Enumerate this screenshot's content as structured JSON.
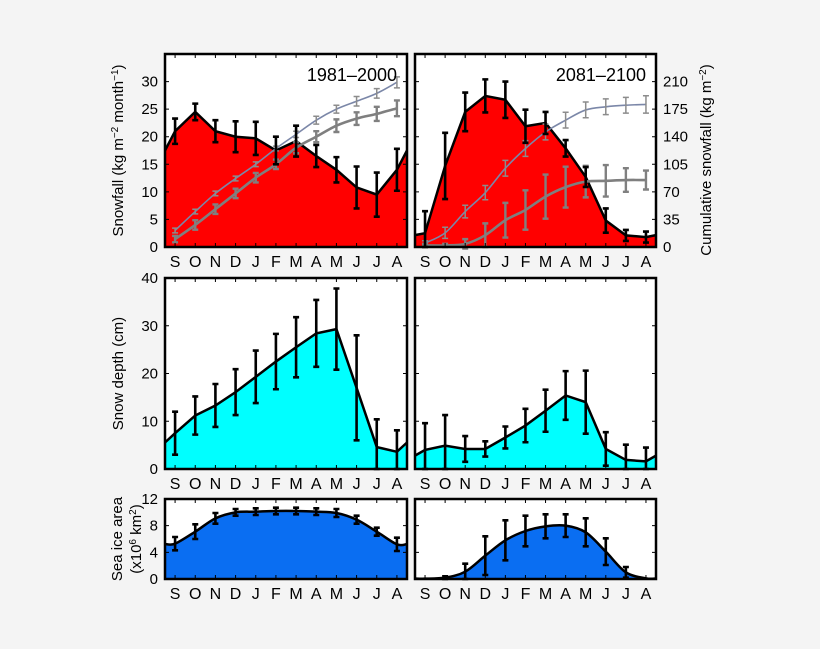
{
  "chart_data": [
    {
      "id": "snowfall-1981",
      "type": "area",
      "title": "1981–2000",
      "categories": [
        "S",
        "O",
        "N",
        "D",
        "J",
        "F",
        "M",
        "A",
        "M",
        "J",
        "J",
        "A"
      ],
      "ylabel": [
        {
          "t": "Snowfall (kg m"
        },
        {
          "t": "−2",
          "sup": true
        },
        {
          "t": " month"
        },
        {
          "t": "−1",
          "sup": true
        },
        {
          "t": ")"
        }
      ],
      "ylim": [
        0,
        35
      ],
      "yticks": [
        0,
        5,
        10,
        15,
        20,
        25,
        30
      ],
      "fill_color": "#ff0000",
      "values": [
        21,
        24.5,
        21,
        20,
        19.7,
        17.5,
        19.2,
        16.5,
        14,
        10.8,
        9.5,
        14
      ],
      "errors": [
        2.3,
        1.5,
        2,
        2.8,
        3,
        2.5,
        2.8,
        2,
        2.3,
        3.8,
        4,
        3.8
      ],
      "cumulative_series": [
        {
          "color": "#7b87a8",
          "values": [
            21,
            45,
            68,
            87,
            105,
            125,
            143,
            161,
            175,
            185,
            195,
            209
          ],
          "errors": [
            3,
            3,
            3,
            3,
            3,
            3,
            4,
            5,
            5,
            6,
            6,
            7
          ]
        },
        {
          "color": "#7f7f7f",
          "values": [
            10,
            28,
            48,
            68,
            88,
            105,
            126,
            140,
            154,
            163,
            169,
            176
          ],
          "errors": [
            4,
            6,
            6,
            6,
            6,
            6,
            7,
            7,
            8,
            8,
            9,
            10
          ]
        }
      ]
    },
    {
      "id": "snowfall-2081",
      "type": "area",
      "title": "2081–2100",
      "categories": [
        "S",
        "O",
        "N",
        "D",
        "J",
        "F",
        "M",
        "A",
        "M",
        "J",
        "J",
        "A"
      ],
      "y2label": [
        {
          "t": "Cumulative snowfall (kg m"
        },
        {
          "t": "−2",
          "sup": true
        },
        {
          "t": ")"
        }
      ],
      "ylim": [
        0,
        35
      ],
      "y2lim": [
        0,
        245
      ],
      "y2ticks": [
        0,
        35,
        70,
        105,
        140,
        175,
        210
      ],
      "fill_color": "#ff0000",
      "values": [
        2.5,
        14.7,
        24.5,
        27.4,
        26.7,
        21.9,
        22.5,
        17.9,
        12.7,
        4.8,
        2.1,
        1.8
      ],
      "errors": [
        4,
        6,
        3.5,
        3,
        3.3,
        3,
        2,
        1.5,
        1.8,
        2.2,
        1,
        1
      ],
      "cumulative_series": [
        {
          "color": "#7b87a8",
          "values": [
            5,
            18,
            45,
            69,
            100,
            125,
            146,
            161,
            174,
            178,
            180,
            181
          ],
          "errors": [
            3,
            7,
            8,
            9,
            10,
            10,
            10,
            10,
            10,
            10,
            10,
            11
          ]
        },
        {
          "color": "#7f7f7f",
          "values": [
            2,
            2,
            4,
            15,
            34,
            47,
            64,
            76,
            83,
            84,
            85,
            85
          ],
          "errors": [
            2,
            2,
            6,
            15,
            22,
            25,
            28,
            26,
            20,
            20,
            15,
            12
          ]
        }
      ]
    },
    {
      "id": "snowdepth-1981",
      "type": "area",
      "categories": [
        "S",
        "O",
        "N",
        "D",
        "J",
        "F",
        "M",
        "A",
        "M",
        "J",
        "J",
        "A"
      ],
      "ylabel": [
        {
          "t": "Snow depth (cm)"
        }
      ],
      "ylim": [
        0,
        40
      ],
      "yticks": [
        0,
        10,
        20,
        30,
        40
      ],
      "fill_color": "#00ffff",
      "values": [
        7.5,
        11.2,
        13.3,
        16.1,
        19.3,
        22.5,
        25.5,
        28.4,
        29.3,
        17,
        4.6,
        3.6
      ],
      "errors": [
        4.5,
        4,
        4.5,
        4.8,
        5.5,
        5.8,
        6.3,
        7,
        8.5,
        11,
        5.8,
        4.5
      ]
    },
    {
      "id": "snowdepth-2081",
      "type": "area",
      "categories": [
        "S",
        "O",
        "N",
        "D",
        "J",
        "F",
        "M",
        "A",
        "M",
        "J",
        "J",
        "A"
      ],
      "ylim": [
        0,
        40
      ],
      "fill_color": "#00ffff",
      "values": [
        4,
        4.9,
        4.2,
        4.2,
        6.6,
        9.1,
        12.2,
        15.4,
        14,
        4.2,
        1.9,
        1.6
      ],
      "errors": [
        5.6,
        6.4,
        2.7,
        1.6,
        2.3,
        3.5,
        4.4,
        5.1,
        6.6,
        3.5,
        3.2,
        2.9
      ]
    },
    {
      "id": "seaice-1981",
      "type": "area",
      "categories": [
        "S",
        "O",
        "N",
        "D",
        "J",
        "F",
        "M",
        "A",
        "M",
        "J",
        "J",
        "A"
      ],
      "ylabel": [
        {
          "t": "Sea ice area"
        }
      ],
      "ylabel2": [
        {
          "t": "(x10"
        },
        {
          "t": "6",
          "sup": true
        },
        {
          "t": " km"
        },
        {
          "t": "2",
          "sup": true
        },
        {
          "t": ")"
        }
      ],
      "ylim": [
        0,
        12
      ],
      "yticks": [
        0,
        4,
        8,
        12
      ],
      "fill_color": "#0a6ef2",
      "values": [
        5.3,
        7.1,
        9.1,
        10,
        10.1,
        10.2,
        10.2,
        10.1,
        9.9,
        8.9,
        7.1,
        5.2
      ],
      "errors": [
        1,
        1.1,
        0.8,
        0.5,
        0.5,
        0.5,
        0.5,
        0.5,
        0.6,
        0.6,
        0.6,
        1
      ]
    },
    {
      "id": "seaice-2081",
      "type": "area",
      "categories": [
        "S",
        "O",
        "N",
        "D",
        "J",
        "F",
        "M",
        "A",
        "M",
        "J",
        "J",
        "A"
      ],
      "ylim": [
        0,
        12
      ],
      "fill_color": "#0a6ef2",
      "values": [
        0.05,
        0.2,
        1.1,
        3.5,
        5.8,
        7.2,
        7.9,
        8,
        7,
        4.1,
        1,
        0.1
      ],
      "errors": [
        0,
        0.2,
        1.2,
        2.9,
        3,
        2.3,
        1.8,
        1.7,
        2.1,
        2,
        0.8,
        0
      ]
    }
  ]
}
